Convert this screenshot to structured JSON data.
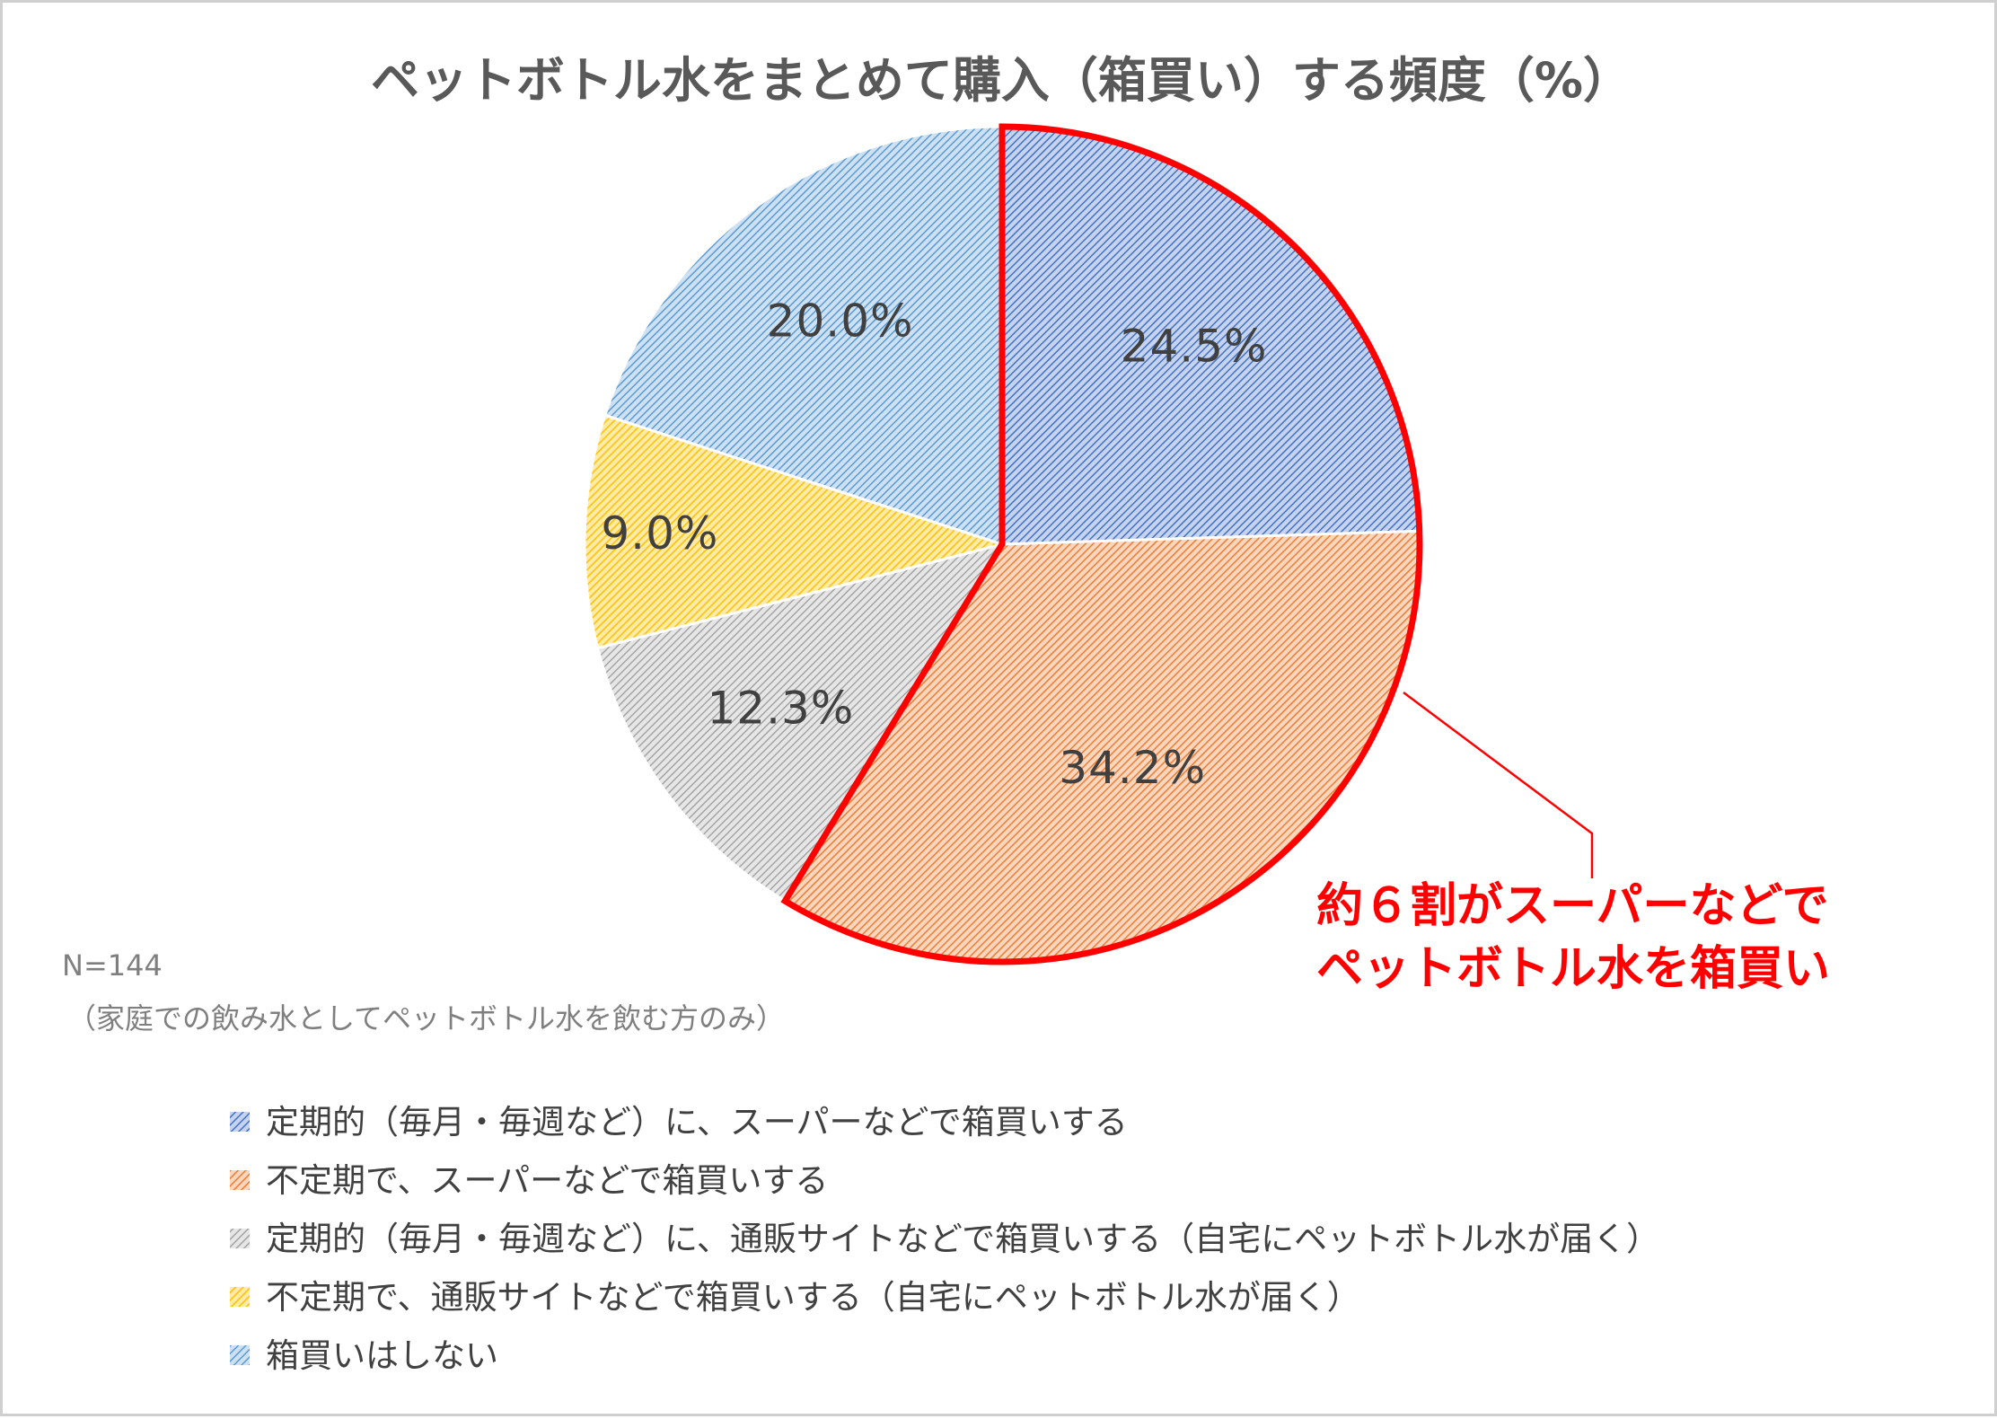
{
  "chart_data": {
    "type": "pie",
    "title": "ペットボトル水をまとめて購入（箱買い）する頻度（%）",
    "categories": [
      "定期的（毎月・毎週など）に、スーパーなどで箱買いする",
      "不定期で、スーパーなどで箱買いする",
      "定期的（毎月・毎週など）に、通販サイトなどで箱買いする（自宅にペットボトル水が届く）",
      "不定期で、通販サイトなどで箱買いする（自宅にペットボトル水が届く）",
      "箱買いはしない"
    ],
    "values": [
      24.5,
      34.2,
      12.3,
      9.0,
      20.0
    ],
    "data_labels": [
      "24.5%",
      "34.2%",
      "12.3%",
      "9.0%",
      "20.0%"
    ],
    "colors": [
      "#4472c4",
      "#ed7d31",
      "#a5a5a5",
      "#ffc000",
      "#5b9bd5"
    ],
    "highlight_color": "#ff0000",
    "highlighted_slices": [
      0,
      1
    ],
    "legend_position": "bottom-left",
    "start_angle": "12 o'clock, clockwise"
  },
  "notes": {
    "n": "N=144",
    "scope": "（家庭での飲み水としてペットボトル水を飲む方のみ）"
  },
  "callout": {
    "line1": "約６割がスーパーなどで",
    "line2": "ペットボトル水を箱買い"
  }
}
